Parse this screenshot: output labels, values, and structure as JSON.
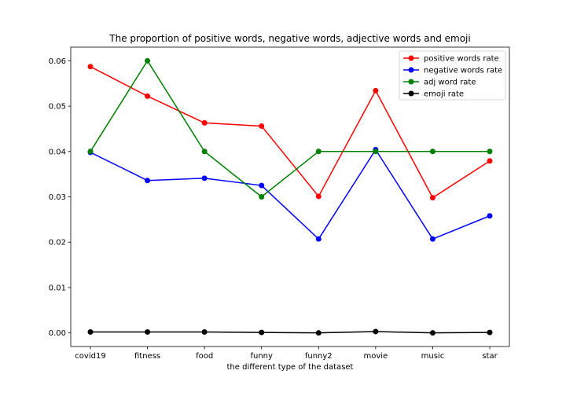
{
  "chart_data": {
    "type": "line",
    "title": "The proportion of positive words, negative words, adjective words and emoji",
    "xlabel": "the different type of the dataset",
    "ylabel": "",
    "categories": [
      "covid19",
      "fitness",
      "food",
      "funny",
      "funny2",
      "movie",
      "music",
      "star"
    ],
    "ylim": [
      -0.003,
      0.063
    ],
    "yticks": [
      0.0,
      0.01,
      0.02,
      0.03,
      0.04,
      0.05,
      0.06
    ],
    "ytick_labels": [
      "0.00",
      "0.01",
      "0.02",
      "0.03",
      "0.04",
      "0.05",
      "0.06"
    ],
    "grid": false,
    "legend_position": "top-right",
    "series": [
      {
        "name": "positive words rate",
        "color": "#ff0000",
        "values": [
          0.0587,
          0.0522,
          0.0463,
          0.0456,
          0.0301,
          0.0534,
          0.0298,
          0.0379
        ]
      },
      {
        "name": "negative words rate",
        "color": "#0000ff",
        "values": [
          0.0398,
          0.0336,
          0.0341,
          0.0325,
          0.0207,
          0.0404,
          0.0207,
          0.0258
        ]
      },
      {
        "name": "adj word rate",
        "color": "#008000",
        "values": [
          0.04,
          0.06,
          0.04,
          0.03,
          0.04,
          0.04,
          0.04,
          0.04
        ]
      },
      {
        "name": "emoji rate",
        "color": "#000000",
        "values": [
          0.0002,
          0.0002,
          0.0002,
          0.0001,
          0.0,
          0.0003,
          0.0,
          0.0001
        ]
      }
    ]
  }
}
